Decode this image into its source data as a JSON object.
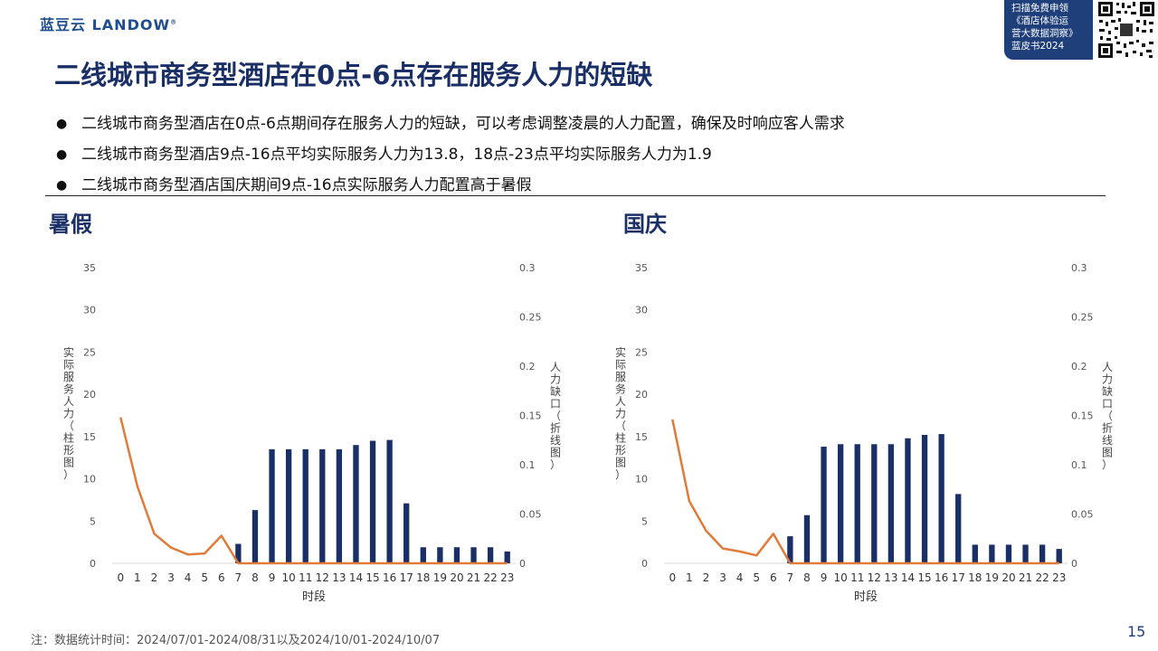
{
  "logo": {
    "text": "蓝豆云",
    "brand": "LANDOW",
    "mark": "®"
  },
  "promo": {
    "lines": [
      "扫描免费申领",
      "《酒店体验运",
      "营大数据洞察》",
      "蓝皮书2024"
    ]
  },
  "title": "二线城市商务型酒店在0点-6点存在服务人力的短缺",
  "bullets": [
    "二线城市商务型酒店在0点-6点期间存在服务人力的短缺，可以考虑调整凌晨的人力配置，确保及时响应客人需求",
    "二线城市商务型酒店9点-16点平均实际服务人力为13.8，18点-23点平均实际服务人力为1.9",
    "二线城市商务型酒店国庆期间9点-16点实际服务人力配置高于暑假"
  ],
  "footnote": "注：数据统计时间：2024/07/01-2024/08/31以及2024/10/01-2024/10/07",
  "page_number": "15",
  "colors": {
    "bar": "#1a2f66",
    "line": "#e07b39",
    "title": "#1a2f66",
    "promo_bg": "#1f3f7a"
  },
  "chart_data": [
    {
      "type": "bar",
      "title": "暑假",
      "xlabel": "时段",
      "ylabel": "实际服务人力（柱形图）",
      "y2label": "人力缺口（折线图）",
      "categories": [
        "0",
        "1",
        "2",
        "3",
        "4",
        "5",
        "6",
        "7",
        "8",
        "9",
        "10",
        "11",
        "12",
        "13",
        "14",
        "15",
        "16",
        "17",
        "18",
        "19",
        "20",
        "21",
        "22",
        "23"
      ],
      "ylim": [
        0,
        35
      ],
      "yticks": [
        "0",
        "5",
        "10",
        "15",
        "20",
        "25",
        "30",
        "35"
      ],
      "y2lim": [
        0,
        0.3
      ],
      "y2ticks": [
        "0",
        "0.05",
        "0.1",
        "0.15",
        "0.2",
        "0.25",
        "0.3"
      ],
      "series": [
        {
          "name": "实际服务人力",
          "type": "bar",
          "axis": "left",
          "values": [
            0,
            0,
            0,
            0,
            0,
            0,
            0,
            2.3,
            6.3,
            13.5,
            13.5,
            13.5,
            13.5,
            13.5,
            14,
            14.5,
            14.6,
            7.1,
            1.9,
            1.9,
            1.9,
            1.9,
            1.9,
            1.4
          ]
        },
        {
          "name": "人力缺口",
          "type": "line",
          "axis": "right",
          "values": [
            0.148,
            0.078,
            0.03,
            0.016,
            0.009,
            0.01,
            0.028,
            0,
            0,
            0,
            0,
            0,
            0,
            0,
            0,
            0,
            0,
            0,
            0,
            0,
            0,
            0,
            0,
            0
          ]
        }
      ],
      "grid": false
    },
    {
      "type": "bar",
      "title": "国庆",
      "xlabel": "时段",
      "ylabel": "实际服务人力（柱形图）",
      "y2label": "人力缺口（折线图）",
      "categories": [
        "0",
        "1",
        "2",
        "3",
        "4",
        "5",
        "6",
        "7",
        "8",
        "9",
        "10",
        "11",
        "12",
        "13",
        "14",
        "15",
        "16",
        "17",
        "18",
        "19",
        "20",
        "21",
        "22",
        "23"
      ],
      "ylim": [
        0,
        35
      ],
      "yticks": [
        "0",
        "5",
        "10",
        "15",
        "20",
        "25",
        "30",
        "35"
      ],
      "y2lim": [
        0,
        0.3
      ],
      "y2ticks": [
        "0",
        "0.05",
        "0.1",
        "0.15",
        "0.2",
        "0.25",
        "0.3"
      ],
      "series": [
        {
          "name": "实际服务人力",
          "type": "bar",
          "axis": "left",
          "values": [
            0,
            0,
            0,
            0,
            0,
            0,
            0,
            3.2,
            5.7,
            13.8,
            14.1,
            14.1,
            14.1,
            14.1,
            14.8,
            15.2,
            15.3,
            8.2,
            2.2,
            2.2,
            2.2,
            2.2,
            2.2,
            1.7
          ]
        },
        {
          "name": "人力缺口",
          "type": "line",
          "axis": "right",
          "values": [
            0.146,
            0.063,
            0.033,
            0.015,
            0.012,
            0.008,
            0.03,
            0,
            0,
            0,
            0,
            0,
            0,
            0,
            0,
            0,
            0,
            0,
            0,
            0,
            0,
            0,
            0,
            0
          ]
        }
      ],
      "grid": false
    }
  ]
}
